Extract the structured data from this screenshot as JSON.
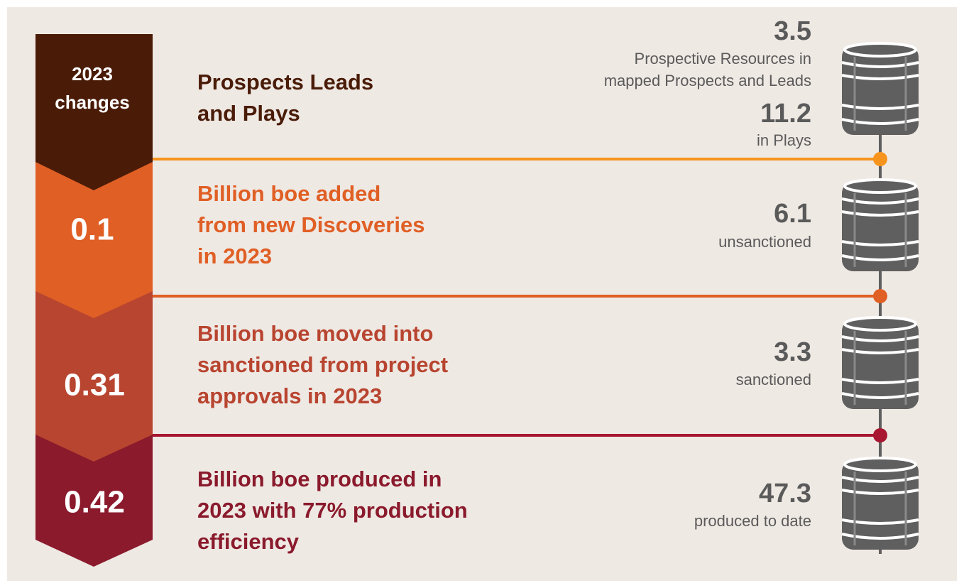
{
  "changes_label": [
    "2023",
    "changes"
  ],
  "stages": [
    {
      "heading": [
        "Prospects Leads",
        "and Plays"
      ],
      "resources": [
        {
          "value": "3.5",
          "label": [
            "Prospective Resources in",
            "mapped Prospects and Leads"
          ]
        },
        {
          "value": "11.2",
          "label": [
            "in Plays"
          ]
        }
      ]
    },
    {
      "change": "0.1",
      "heading": [
        "Billion boe added",
        "from new Discoveries",
        "in 2023"
      ],
      "resources": [
        {
          "value": "6.1",
          "label": [
            "unsanctioned"
          ]
        }
      ]
    },
    {
      "change": "0.31",
      "heading": [
        "Billion boe moved into",
        "sanctioned from project",
        "approvals in 2023"
      ],
      "resources": [
        {
          "value": "3.3",
          "label": [
            "sanctioned"
          ]
        }
      ]
    },
    {
      "change": "0.42",
      "heading": [
        "Billion boe produced in",
        "2023 with 77% production",
        "efficiency"
      ],
      "resources": [
        {
          "value": "47.3",
          "label": [
            "produced to date"
          ]
        }
      ]
    }
  ]
}
